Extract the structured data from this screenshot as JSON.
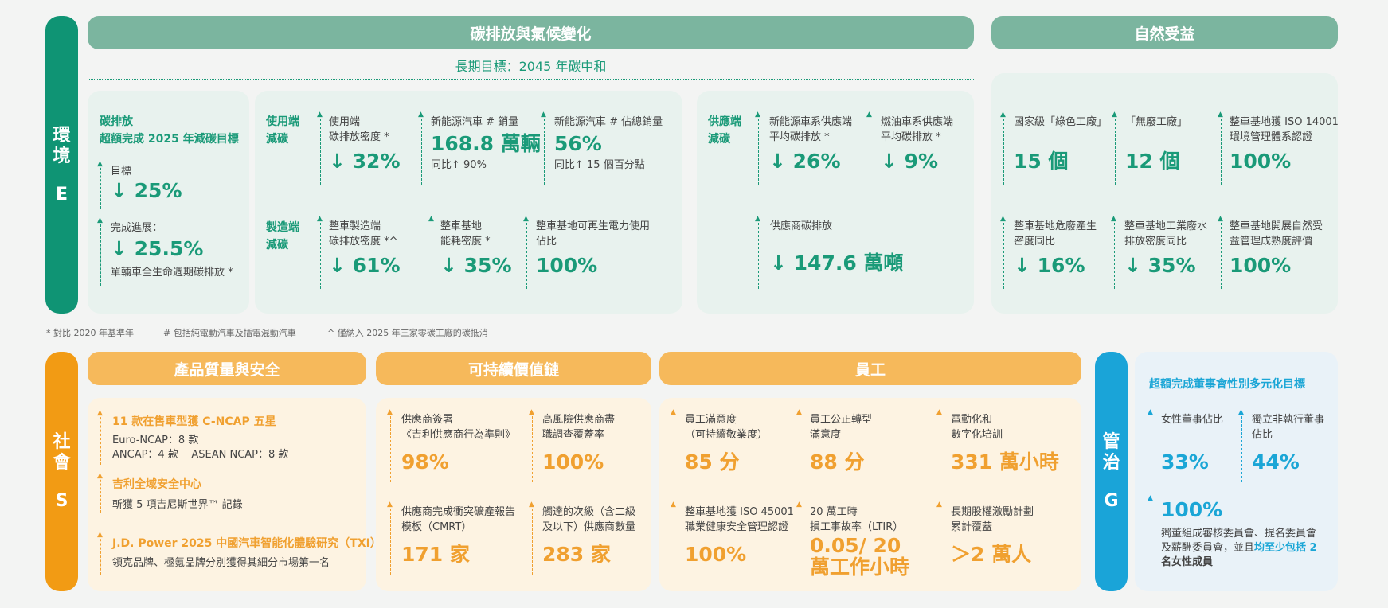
{
  "env": {
    "side": {
      "c1": "環",
      "c2": "境",
      "letter": "E"
    },
    "hdr_carbon": "碳排放與氣候變化",
    "hdr_nature": "自然受益",
    "long_term": "長期目標：2045 年碳中和",
    "carbon_title1": "碳排放",
    "carbon_title2": "超額完成 2025 年減碳目標",
    "target_label": "目標",
    "target_value": "↓ 25%",
    "progress_label": "完成進展：",
    "progress_value": "↓ 25.5%",
    "progress_note": "單輛車全生命週期碳排放 *",
    "use_title1": "使用端",
    "use_title2": "減碳",
    "use_density_label1": "使用端",
    "use_density_label2": "碳排放密度 *",
    "use_density_value": "↓ 32%",
    "nev_sales_label": "新能源汽車 # 銷量",
    "nev_sales_value": "168.8 萬輛",
    "nev_sales_yoy": "同比↑ 90%",
    "nev_share_label": "新能源汽車 # 佔總銷量",
    "nev_share_value": "56%",
    "nev_share_yoy": "同比↑ 15 個百分點",
    "mfg_title1": "製造端",
    "mfg_title2": "減碳",
    "mfg_density_label1": "整車製造端",
    "mfg_density_label2": "碳排放密度 *^",
    "mfg_density_value": "↓ 61%",
    "energy_label1": "整車基地",
    "energy_label2": "能耗密度 *",
    "energy_value": "↓ 35%",
    "renew_label1": "整車基地可再生電力使用",
    "renew_label2": "佔比",
    "renew_value": "100%",
    "supply_title1": "供應端",
    "supply_title2": "減碳",
    "nev_supply_label1": "新能源車系供應端",
    "nev_supply_label2": "平均碳排放 *",
    "nev_supply_value": "↓ 26%",
    "fuel_supply_label1": "燃油車系供應端",
    "fuel_supply_label2": "平均碳排放 *",
    "fuel_supply_value": "↓ 9%",
    "supplier_em_label": "供應商碳排放",
    "supplier_em_value": "↓ 147.6 萬噸",
    "green_factory_label": "國家級「綠色工廠」",
    "green_factory_value": "15 個",
    "zero_waste_label": "「無廢工廠」",
    "zero_waste_value": "12 個",
    "iso14001_label1": "整車基地獲 ISO 14001",
    "iso14001_label2": "環境管理體系認證",
    "iso14001_value": "100%",
    "haz_label1": "整車基地危廢產生",
    "haz_label2": "密度同比",
    "haz_value": "↓ 16%",
    "water_label1": "整車基地工業廢水",
    "water_label2": "排放密度同比",
    "water_value": "↓ 35%",
    "nat_label1": "整車基地開展自然受",
    "nat_label2": "益管理成熟度評價",
    "nat_value": "100%"
  },
  "footnotes": {
    "f1": "* 對比 2020 年基準年",
    "f2": "# 包括純電動汽車及插電混動汽車",
    "f3": "^ 僅納入 2025 年三家零碳工廠的碳抵消"
  },
  "social": {
    "side": {
      "c1": "社",
      "c2": "會",
      "letter": "S"
    },
    "hdr_quality": "產品質量與安全",
    "hdr_value_chain": "可持續價值鏈",
    "hdr_staff": "員工",
    "q1_title": "11 款在售車型獲 C-NCAP 五星",
    "q1_line1": "Euro-NCAP：8 款",
    "q1_line2": "ANCAP：4 款    ASEAN NCAP：8 款",
    "q2_title": "吉利全域安全中心",
    "q2_line1": "斬獲 5 項吉尼斯世界™ 記錄",
    "q3_title": "J.D. Power 2025 中國汽車智能化體驗研究（TXI）",
    "q3_line1": "領克品牌、極氪品牌分別獲得其細分市場第一名",
    "vc1_label1": "供應商簽署",
    "vc1_label2": "《吉利供應商行為準則》",
    "vc1_value": "98%",
    "vc2_label1": "高風險供應商盡",
    "vc2_label2": "職調查覆蓋率",
    "vc2_value": "100%",
    "vc3_label1": "供應商完成衝突礦產報告",
    "vc3_label2": "模板（CMRT）",
    "vc3_value": "171 家",
    "vc4_label1": "觸達的次級（含二級",
    "vc4_label2": "及以下）供應商數量",
    "vc4_value": "283 家",
    "st1_label1": "員工滿意度",
    "st1_label2": "（可持續敬業度）",
    "st1_value": "85 分",
    "st2_label1": "員工公正轉型",
    "st2_label2": "滿意度",
    "st2_value": "88 分",
    "st3_label1": "電動化和",
    "st3_label2": "數字化培訓",
    "st3_value": "331 萬小時",
    "st4_label1": "整車基地獲 ISO 45001",
    "st4_label2": "職業健康安全管理認證",
    "st4_value": "100%",
    "st5_label1": "20 萬工時",
    "st5_label2": "損工事故率（LTIR）",
    "st5_value1": "0.05/ 20",
    "st5_value2": "萬工作小時",
    "st6_label1": "長期股權激勵計劃",
    "st6_label2": "累計覆蓋",
    "st6_value": "＞2 萬人"
  },
  "gov": {
    "side": {
      "c1": "管",
      "c2": "治",
      "letter": "G"
    },
    "title": "超額完成董事會性別多元化目標",
    "g1_label": "女性董事佔比",
    "g1_value": "33%",
    "g2_label1": "獨立非執行董事",
    "g2_label2": "佔比",
    "g2_value": "44%",
    "g3_value": "100%",
    "g3_text1": "獨董組成審核委員會、提名委員會",
    "g3_text2": "及薪酬委員會，並且",
    "g3_text2_hl": "均至少包括 2",
    "g3_text3_hl": "名女性成員"
  },
  "colors": {
    "green": "#1a9a78",
    "green_header": "#7bb59f",
    "orange": "#f0a030",
    "orange_header": "#f6b95b",
    "blue": "#1ba6d6"
  }
}
